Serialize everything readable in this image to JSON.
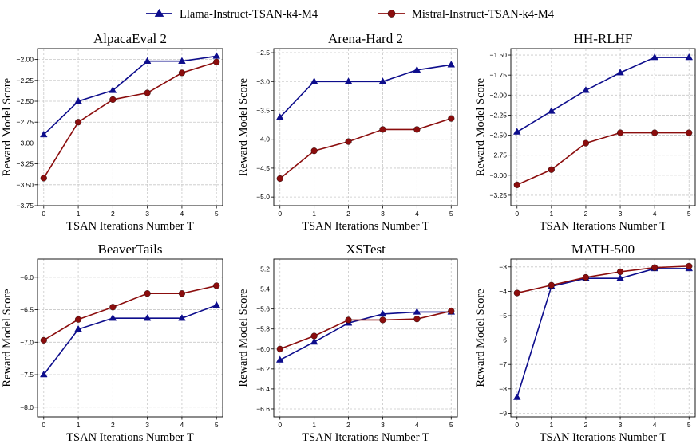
{
  "legend": [
    {
      "label": "Llama-Instruct-TSAN-k4-M4",
      "color": "#0d0d8c",
      "marker": "triangle"
    },
    {
      "label": "Mistral-Instruct-TSAN-k4-M4",
      "color": "#8b0d0d",
      "marker": "circle"
    }
  ],
  "chart_data": [
    {
      "type": "line",
      "title": "AlpacaEval 2",
      "xlabel": "TSAN Iterations Number T",
      "ylabel": "Reward Model Score",
      "x": [
        0,
        1,
        2,
        3,
        4,
        5
      ],
      "xticks": [
        "0",
        "1",
        "2",
        "3",
        "4",
        "5"
      ],
      "ylim": [
        -3.75,
        -1.87
      ],
      "yticks": [
        -3.75,
        -3.5,
        -3.25,
        -3.0,
        -2.75,
        -2.5,
        -2.25,
        -2.0
      ],
      "ytick_labels": [
        "−3.75",
        "−3.50",
        "−3.25",
        "−3.00",
        "−2.75",
        "−2.50",
        "−2.25",
        "−2.00"
      ],
      "grid": true,
      "series": [
        {
          "name": "Llama-Instruct-TSAN-k4-M4",
          "values": [
            -2.9,
            -2.5,
            -2.37,
            -2.02,
            -2.02,
            -1.96
          ]
        },
        {
          "name": "Mistral-Instruct-TSAN-k4-M4",
          "values": [
            -3.42,
            -2.75,
            -2.48,
            -2.4,
            -2.16,
            -2.03
          ]
        }
      ]
    },
    {
      "type": "line",
      "title": "Arena-Hard 2",
      "xlabel": "TSAN Iterations Number T",
      "ylabel": "Reward Model Score",
      "x": [
        0,
        1,
        2,
        3,
        4,
        5
      ],
      "xticks": [
        "0",
        "1",
        "2",
        "3",
        "4",
        "5"
      ],
      "ylim": [
        -5.15,
        -2.43
      ],
      "yticks": [
        -5.0,
        -4.5,
        -4.0,
        -3.5,
        -3.0,
        -2.5
      ],
      "ytick_labels": [
        "−5.0",
        "−4.5",
        "−4.0",
        "−3.5",
        "−3.0",
        "−2.5"
      ],
      "grid": true,
      "series": [
        {
          "name": "Llama-Instruct-TSAN-k4-M4",
          "values": [
            -3.62,
            -3.0,
            -3.0,
            -3.0,
            -2.8,
            -2.71
          ]
        },
        {
          "name": "Mistral-Instruct-TSAN-k4-M4",
          "values": [
            -4.68,
            -4.2,
            -4.04,
            -3.83,
            -3.83,
            -3.64
          ]
        }
      ]
    },
    {
      "type": "line",
      "title": "HH-RLHF",
      "xlabel": "TSAN Iterations Number T",
      "ylabel": "Reward Model Score",
      "x": [
        0,
        1,
        2,
        3,
        4,
        5
      ],
      "xticks": [
        "0",
        "1",
        "2",
        "3",
        "4",
        "5"
      ],
      "ylim": [
        -3.38,
        -1.42
      ],
      "yticks": [
        -3.25,
        -3.0,
        -2.75,
        -2.5,
        -2.25,
        -2.0,
        -1.75,
        -1.5
      ],
      "ytick_labels": [
        "−3.25",
        "−3.00",
        "−2.75",
        "−2.50",
        "−2.25",
        "−2.00",
        "−1.75",
        "−1.50"
      ],
      "grid": true,
      "series": [
        {
          "name": "Llama-Instruct-TSAN-k4-M4",
          "values": [
            -2.46,
            -2.2,
            -1.94,
            -1.72,
            -1.53,
            -1.53
          ]
        },
        {
          "name": "Mistral-Instruct-TSAN-k4-M4",
          "values": [
            -3.12,
            -2.93,
            -2.6,
            -2.47,
            -2.47,
            -2.47
          ]
        }
      ]
    },
    {
      "type": "line",
      "title": "BeaverTails",
      "xlabel": "TSAN Iterations Number T",
      "ylabel": "Reward Model Score",
      "x": [
        0,
        1,
        2,
        3,
        4,
        5
      ],
      "xticks": [
        "0",
        "1",
        "2",
        "3",
        "4",
        "5"
      ],
      "ylim": [
        -8.15,
        -5.72
      ],
      "yticks": [
        -8.0,
        -7.5,
        -7.0,
        -6.5,
        -6.0
      ],
      "ytick_labels": [
        "−8.0",
        "−7.5",
        "−7.0",
        "−6.5",
        "−6.0"
      ],
      "grid": true,
      "series": [
        {
          "name": "Llama-Instruct-TSAN-k4-M4",
          "values": [
            -7.5,
            -6.8,
            -6.63,
            -6.63,
            -6.63,
            -6.43
          ]
        },
        {
          "name": "Mistral-Instruct-TSAN-k4-M4",
          "values": [
            -6.97,
            -6.65,
            -6.46,
            -6.25,
            -6.25,
            -6.13
          ]
        }
      ]
    },
    {
      "type": "line",
      "title": "XSTest",
      "xlabel": "TSAN Iterations Number T",
      "ylabel": "Reward Model Score",
      "x": [
        0,
        1,
        2,
        3,
        4,
        5
      ],
      "xticks": [
        "0",
        "1",
        "2",
        "3",
        "4",
        "5"
      ],
      "ylim": [
        -6.68,
        -5.1
      ],
      "yticks": [
        -6.6,
        -6.4,
        -6.2,
        -6.0,
        -5.8,
        -5.6,
        -5.4,
        -5.2
      ],
      "ytick_labels": [
        "−6.6",
        "−6.4",
        "−6.2",
        "−6.0",
        "−5.8",
        "−5.6",
        "−5.4",
        "−5.2"
      ],
      "grid": true,
      "series": [
        {
          "name": "Llama-Instruct-TSAN-k4-M4",
          "values": [
            -6.11,
            -5.93,
            -5.74,
            -5.65,
            -5.63,
            -5.63
          ]
        },
        {
          "name": "Mistral-Instruct-TSAN-k4-M4",
          "values": [
            -6.0,
            -5.87,
            -5.71,
            -5.71,
            -5.7,
            -5.62
          ]
        }
      ]
    },
    {
      "type": "line",
      "title": "MATH-500",
      "xlabel": "TSAN Iterations Number T",
      "ylabel": "Reward Model Score",
      "x": [
        0,
        1,
        2,
        3,
        4,
        5
      ],
      "xticks": [
        "0",
        "1",
        "2",
        "3",
        "4",
        "5"
      ],
      "ylim": [
        -9.15,
        -2.68
      ],
      "yticks": [
        -9,
        -8,
        -7,
        -6,
        -5,
        -4,
        -3
      ],
      "ytick_labels": [
        "−9",
        "−8",
        "−7",
        "−6",
        "−5",
        "−4",
        "−3"
      ],
      "grid": true,
      "series": [
        {
          "name": "Llama-Instruct-TSAN-k4-M4",
          "values": [
            -8.35,
            -3.8,
            -3.47,
            -3.47,
            -3.07,
            -3.07
          ]
        },
        {
          "name": "Mistral-Instruct-TSAN-k4-M4",
          "values": [
            -4.07,
            -3.75,
            -3.43,
            -3.2,
            -3.03,
            -2.97
          ]
        }
      ]
    }
  ]
}
